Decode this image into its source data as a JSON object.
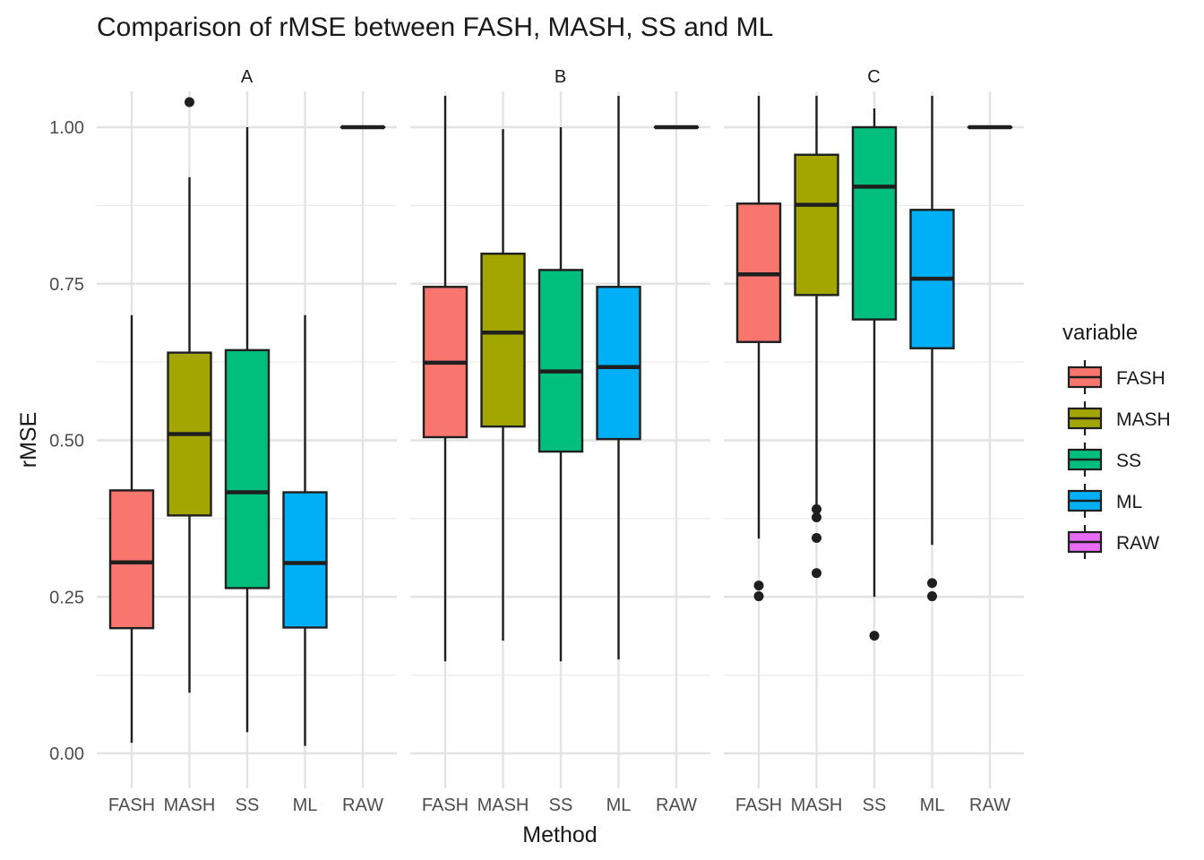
{
  "chart_data": {
    "type": "boxplot",
    "title": "Comparison of rMSE between FASH, MASH, SS and ML",
    "xlabel": "Method",
    "ylabel": "rMSE",
    "ylim": [
      -0.02,
      1.05
    ],
    "yticks": [
      0.0,
      0.25,
      0.5,
      0.75,
      1.0
    ],
    "ytick_labels": [
      "0.00",
      "0.25",
      "0.50",
      "0.75",
      "1.00"
    ],
    "categories": [
      "FASH",
      "MASH",
      "SS",
      "ML",
      "RAW"
    ],
    "legend": {
      "title": "variable",
      "position": "right",
      "entries": [
        {
          "name": "FASH",
          "color": "#F8766D"
        },
        {
          "name": "MASH",
          "color": "#A3A500"
        },
        {
          "name": "SS",
          "color": "#00BF7D"
        },
        {
          "name": "ML",
          "color": "#00B0F6"
        },
        {
          "name": "RAW",
          "color": "#E76BF3"
        }
      ]
    },
    "facets": [
      {
        "label": "A",
        "boxes": [
          {
            "category": "FASH",
            "whisker_low": 0.017,
            "q1": 0.2,
            "median": 0.305,
            "q3": 0.42,
            "whisker_high": 0.7,
            "outliers": []
          },
          {
            "category": "MASH",
            "whisker_low": 0.097,
            "q1": 0.38,
            "median": 0.51,
            "q3": 0.64,
            "whisker_high": 0.92,
            "outliers": [
              1.04
            ]
          },
          {
            "category": "SS",
            "whisker_low": 0.034,
            "q1": 0.264,
            "median": 0.417,
            "q3": 0.644,
            "whisker_high": 1.0,
            "outliers": []
          },
          {
            "category": "ML",
            "whisker_low": 0.012,
            "q1": 0.201,
            "median": 0.304,
            "q3": 0.417,
            "whisker_high": 0.7,
            "outliers": []
          },
          {
            "category": "RAW",
            "whisker_low": 1.0,
            "q1": 1.0,
            "median": 1.0,
            "q3": 1.0,
            "whisker_high": 1.0,
            "outliers": []
          }
        ]
      },
      {
        "label": "B",
        "boxes": [
          {
            "category": "FASH",
            "whisker_low": 0.147,
            "q1": 0.505,
            "median": 0.624,
            "q3": 0.745,
            "whisker_high": 1.05,
            "outliers": []
          },
          {
            "category": "MASH",
            "whisker_low": 0.18,
            "q1": 0.522,
            "median": 0.672,
            "q3": 0.798,
            "whisker_high": 0.997,
            "outliers": []
          },
          {
            "category": "SS",
            "whisker_low": 0.147,
            "q1": 0.482,
            "median": 0.61,
            "q3": 0.772,
            "whisker_high": 1.0,
            "outliers": []
          },
          {
            "category": "ML",
            "whisker_low": 0.15,
            "q1": 0.502,
            "median": 0.617,
            "q3": 0.745,
            "whisker_high": 1.05,
            "outliers": []
          },
          {
            "category": "RAW",
            "whisker_low": 1.0,
            "q1": 1.0,
            "median": 1.0,
            "q3": 1.0,
            "whisker_high": 1.0,
            "outliers": []
          }
        ]
      },
      {
        "label": "C",
        "boxes": [
          {
            "category": "FASH",
            "whisker_low": 0.343,
            "q1": 0.657,
            "median": 0.765,
            "q3": 0.878,
            "whisker_high": 1.05,
            "outliers": [
              0.268,
              0.251
            ]
          },
          {
            "category": "MASH",
            "whisker_low": 0.39,
            "q1": 0.732,
            "median": 0.876,
            "q3": 0.956,
            "whisker_high": 1.05,
            "outliers": [
              0.39,
              0.377,
              0.344,
              0.288
            ]
          },
          {
            "category": "SS",
            "whisker_low": 0.25,
            "q1": 0.693,
            "median": 0.905,
            "q3": 1.0,
            "whisker_high": 1.03,
            "outliers": [
              0.188
            ]
          },
          {
            "category": "ML",
            "whisker_low": 0.333,
            "q1": 0.647,
            "median": 0.758,
            "q3": 0.868,
            "whisker_high": 1.05,
            "outliers": [
              0.272,
              0.251
            ]
          },
          {
            "category": "RAW",
            "whisker_low": 1.0,
            "q1": 1.0,
            "median": 1.0,
            "q3": 1.0,
            "whisker_high": 1.0,
            "outliers": []
          }
        ]
      }
    ]
  }
}
